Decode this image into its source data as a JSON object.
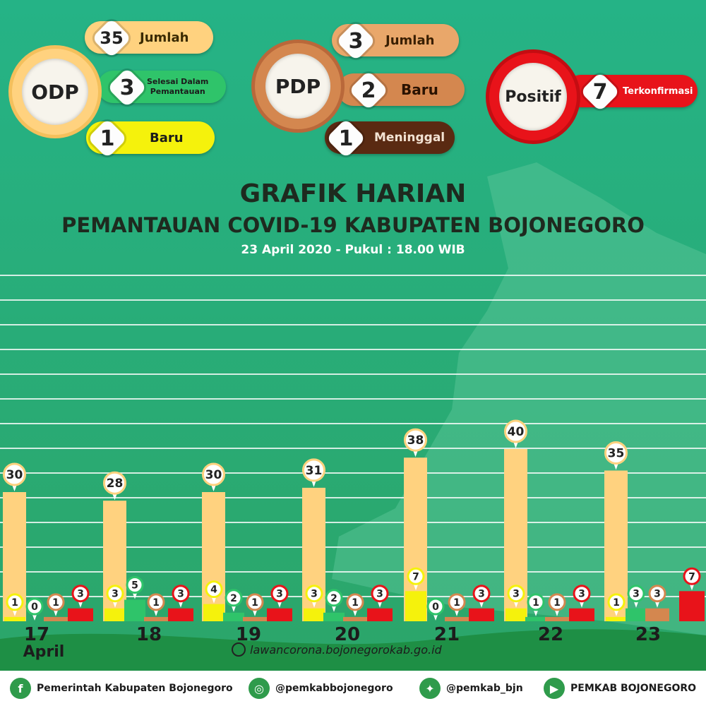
{
  "colors": {
    "bg_top": "#26b083",
    "bg_bottom": "#2da36b",
    "odp_total": "#ffd27f",
    "odp_done": "#2fc46a",
    "odp_new": "#f5f20c",
    "pdp_total": "#e9a76a",
    "pdp_new": "#d4874f",
    "pdp_dead": "#5a2a12",
    "positive": "#e8131a"
  },
  "stats": {
    "odp": {
      "label": "ODP",
      "total": "35",
      "total_label": "Jumlah",
      "done": "3",
      "done_label_1": "Selesai Dalam",
      "done_label_2": "Pemantauan",
      "new": "1",
      "new_label": "Baru"
    },
    "pdp": {
      "label": "PDP",
      "total": "3",
      "total_label": "Jumlah",
      "new": "2",
      "new_label": "Baru",
      "dead": "1",
      "dead_label": "Meninggal"
    },
    "positif": {
      "label": "Positif",
      "value": "7",
      "value_label": "Terkonfirmasi"
    }
  },
  "header": {
    "title": "GRAFIK HARIAN",
    "subtitle": "PEMANTAUAN COVID-19 KABUPATEN BOJONEGORO",
    "date": "23 April 2020 - Pukul : 18.00 WIB"
  },
  "chart_data": {
    "type": "bar",
    "categories": [
      "17",
      "18",
      "19",
      "20",
      "21",
      "22",
      "23"
    ],
    "month_label": "April",
    "ylim": [
      0,
      40
    ],
    "series": [
      {
        "values": [
          30,
          28,
          30,
          31,
          38,
          40,
          35
        ],
        "color": "#ffd27f"
      },
      {
        "values": [
          1,
          3,
          4,
          3,
          7,
          3,
          1
        ],
        "color": "#f5f20c"
      },
      {
        "values": [
          0,
          5,
          2,
          2,
          0,
          1,
          3
        ],
        "color": "#2fc46a"
      },
      {
        "values": [
          1,
          1,
          1,
          1,
          1,
          1,
          3
        ],
        "color": "#d4874f"
      },
      {
        "values": [
          3,
          3,
          3,
          3,
          3,
          3,
          7
        ],
        "color": "#e8131a"
      }
    ]
  },
  "website": "lawancorona.bojonegorokab.go.id",
  "footer": {
    "facebook": "Pemerintah Kabupaten Bojonegoro",
    "instagram": "@pemkabbojonegoro",
    "twitter": "@pemkab_bjn",
    "youtube": "PEMKAB BOJONEGORO"
  }
}
